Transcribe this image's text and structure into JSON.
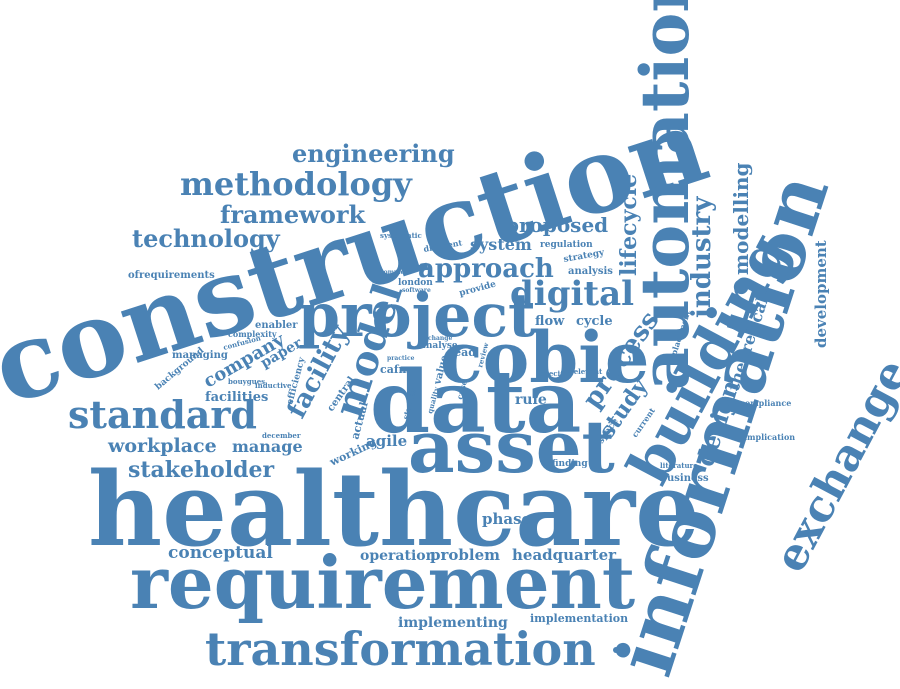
{
  "color": "#4a82b4",
  "words": [
    "construction",
    "healthcare",
    "information",
    "requirement",
    "automation",
    "data",
    "asset",
    "building",
    "cobie",
    "project",
    "exchange",
    "transformation",
    "standard",
    "model",
    "digital",
    "approach",
    "industry",
    "methodology",
    "engineering",
    "framework",
    "technology",
    "proposed",
    "system",
    "lifecycle",
    "modelling",
    "development",
    "facility",
    "company",
    "stakeholder",
    "workplace",
    "manage",
    "conceptual",
    "phase",
    "design",
    "process",
    "study",
    "theoretical",
    "operation",
    "problem",
    "headquarter",
    "implementing",
    "implementation",
    "agile",
    "facilities",
    "paper",
    "ofrequirements",
    "complexity",
    "enabler",
    "managing",
    "confusion",
    "background",
    "bouygues",
    "inductive",
    "efficiency",
    "central",
    "actual",
    "working",
    "december",
    "cafm",
    "rule",
    "lead",
    "flow",
    "cycle",
    "analyse",
    "practice",
    "studies",
    "value",
    "quality",
    "finding",
    "space",
    "current",
    "relevant",
    "specific",
    "compliance",
    "implication",
    "literature",
    "business",
    "placement",
    "regulation",
    "strategy",
    "analysis",
    "different",
    "systematic",
    "software",
    "london",
    "complete",
    "provide",
    "review",
    "case",
    "change"
  ]
}
